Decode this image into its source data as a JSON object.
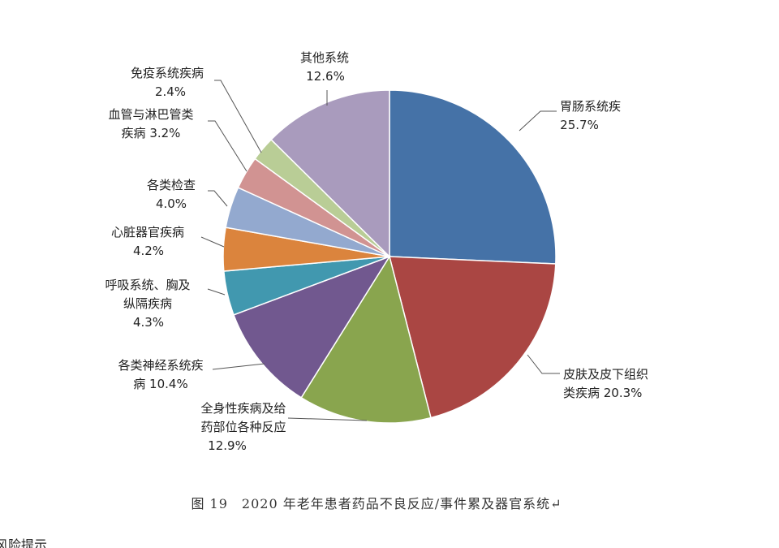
{
  "chart_data": {
    "type": "pie",
    "title": "",
    "caption": "图 19　2020 年老年患者药品不良反应/事件累及器官系统↵",
    "slices": [
      {
        "label_lines": [
          "胃肠系统疾"
        ],
        "pct_text": "25.7%",
        "value": 25.7,
        "color": "#4572A7"
      },
      {
        "label_lines": [
          "皮肤及皮下组织",
          "类疾病 20.3%"
        ],
        "pct_text": "",
        "value": 20.3,
        "color": "#AA4643"
      },
      {
        "label_lines": [
          "全身性疾病及给",
          "药部位各种反应"
        ],
        "pct_text": "12.9%",
        "value": 12.9,
        "color": "#89A54E"
      },
      {
        "label_lines": [
          "各类神经系统疾",
          "病 10.4%"
        ],
        "pct_text": "",
        "value": 10.4,
        "color": "#71588F"
      },
      {
        "label_lines": [
          "呼吸系统、胸及",
          "纵隔疾病"
        ],
        "pct_text": "4.3%",
        "value": 4.3,
        "color": "#4198AF"
      },
      {
        "label_lines": [
          "心脏器官疾病"
        ],
        "pct_text": "4.2%",
        "value": 4.2,
        "color": "#DB843D"
      },
      {
        "label_lines": [
          "各类检查"
        ],
        "pct_text": "4.0%",
        "value": 4.0,
        "color": "#93A9CF"
      },
      {
        "label_lines": [
          "血管与淋巴管类",
          "疾病 3.2%"
        ],
        "pct_text": "",
        "value": 3.2,
        "color": "#D19392"
      },
      {
        "label_lines": [
          "免疫系统疾病"
        ],
        "pct_text": "2.4%",
        "value": 2.4,
        "color": "#B9CD96"
      },
      {
        "label_lines": [
          "其他系统"
        ],
        "pct_text": "12.6%",
        "value": 12.6,
        "color": "#A99BBD"
      }
    ]
  },
  "footer_fragment": "风险提示"
}
